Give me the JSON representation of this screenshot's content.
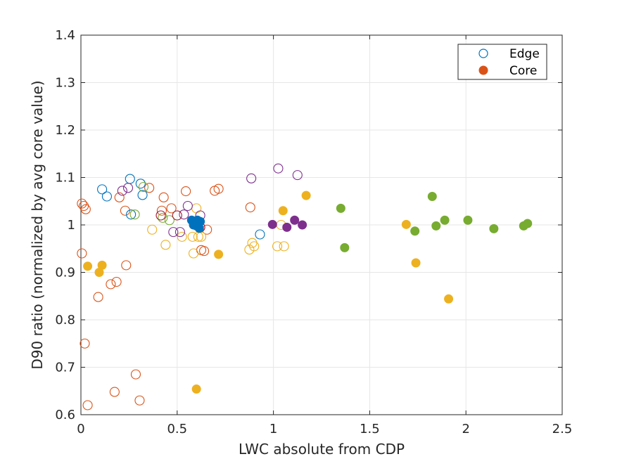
{
  "chart_data": {
    "type": "scatter",
    "title": "",
    "xlabel": "LWC absolute from CDP",
    "ylabel": "D90 ratio (normalized by avg core value)",
    "xlim": [
      0,
      2.5
    ],
    "ylim": [
      0.6,
      1.4
    ],
    "x_ticks": [
      "0",
      "0.5",
      "1",
      "1.5",
      "2",
      "2.5"
    ],
    "x_tick_values": [
      0,
      0.5,
      1,
      1.5,
      2,
      2.5
    ],
    "y_ticks": [
      "0.6",
      "0.7",
      "0.8",
      "0.9",
      "1",
      "1.1",
      "1.2",
      "1.3",
      "1.4"
    ],
    "y_tick_values": [
      0.6,
      0.7,
      0.8,
      0.9,
      1.0,
      1.1,
      1.2,
      1.3,
      1.4
    ],
    "grid": true,
    "legend_placement": "top-right",
    "legend": [
      {
        "label": "Edge",
        "marker": "open-circle",
        "color": "#0072BD"
      },
      {
        "label": "Core",
        "marker": "filled-circle",
        "color": "#D95319"
      }
    ],
    "series": [
      {
        "color": "#D95319",
        "filled": false,
        "points": [
          [
            0.005,
            1.045
          ],
          [
            0.015,
            1.04
          ],
          [
            0.025,
            1.033
          ],
          [
            0.005,
            0.94
          ],
          [
            0.02,
            0.75
          ],
          [
            0.035,
            0.62
          ],
          [
            0.09,
            0.848
          ],
          [
            0.155,
            0.875
          ],
          [
            0.185,
            0.88
          ],
          [
            0.235,
            0.915
          ],
          [
            0.175,
            0.648
          ],
          [
            0.285,
            0.685
          ],
          [
            0.305,
            0.63
          ],
          [
            0.2,
            1.058
          ],
          [
            0.23,
            1.03
          ],
          [
            0.355,
            1.078
          ],
          [
            0.43,
            1.058
          ],
          [
            0.545,
            1.071
          ],
          [
            0.6,
            1.0
          ],
          [
            0.625,
            0.947
          ],
          [
            0.64,
            0.945
          ],
          [
            0.655,
            0.99
          ],
          [
            0.695,
            1.072
          ],
          [
            0.715,
            1.076
          ],
          [
            0.88,
            1.037
          ],
          [
            0.42,
            1.03
          ],
          [
            0.47,
            1.035
          ]
        ]
      },
      {
        "color": "#0072BD",
        "filled": false,
        "points": [
          [
            0.11,
            1.075
          ],
          [
            0.135,
            1.06
          ],
          [
            0.26,
            1.022
          ],
          [
            0.255,
            1.097
          ],
          [
            0.31,
            1.087
          ],
          [
            0.32,
            1.063
          ],
          [
            0.93,
            0.98
          ]
        ]
      },
      {
        "color": "#EDB120",
        "filled": false,
        "points": [
          [
            0.37,
            0.99
          ],
          [
            0.44,
            0.958
          ],
          [
            0.525,
            0.975
          ],
          [
            0.58,
            0.975
          ],
          [
            0.585,
            0.94
          ],
          [
            0.61,
            0.975
          ],
          [
            0.625,
            0.975
          ],
          [
            0.875,
            0.948
          ],
          [
            0.89,
            0.962
          ],
          [
            0.9,
            0.955
          ],
          [
            1.02,
            0.955
          ],
          [
            1.04,
            1.0
          ],
          [
            1.055,
            0.955
          ],
          [
            0.6,
            1.035
          ]
        ]
      },
      {
        "color": "#77AC30",
        "filled": false,
        "points": [
          [
            0.28,
            1.022
          ],
          [
            0.425,
            1.015
          ],
          [
            0.46,
            1.01
          ],
          [
            0.325,
            1.08
          ]
        ]
      },
      {
        "color": "#7E2F8E",
        "filled": false,
        "points": [
          [
            0.215,
            1.072
          ],
          [
            0.245,
            1.078
          ],
          [
            0.48,
            0.985
          ],
          [
            0.515,
            0.985
          ],
          [
            0.535,
            1.022
          ],
          [
            0.555,
            1.04
          ],
          [
            0.885,
            1.098
          ],
          [
            1.025,
            1.119
          ],
          [
            1.125,
            1.105
          ],
          [
            0.62,
            1.02
          ]
        ]
      },
      {
        "color": "#A2142F",
        "filled": false,
        "points": [
          [
            0.415,
            1.02
          ],
          [
            0.5,
            1.02
          ],
          [
            0.62,
            0.995
          ]
        ]
      },
      {
        "color": "#0072BD",
        "filled": true,
        "points": [
          [
            0.575,
            1.01
          ],
          [
            0.585,
            1.0
          ],
          [
            0.595,
            1.005
          ],
          [
            0.6,
            0.998
          ],
          [
            0.605,
            1.01
          ],
          [
            0.61,
            1.002
          ],
          [
            0.615,
            0.993
          ],
          [
            0.62,
            1.007
          ]
        ]
      },
      {
        "color": "#EDB120",
        "filled": true,
        "points": [
          [
            0.035,
            0.913
          ],
          [
            0.095,
            0.9
          ],
          [
            0.11,
            0.915
          ],
          [
            0.6,
            0.654
          ],
          [
            0.715,
            0.938
          ],
          [
            1.05,
            1.03
          ],
          [
            1.17,
            1.062
          ],
          [
            1.69,
            1.001
          ],
          [
            1.74,
            0.92
          ],
          [
            1.91,
            0.844
          ]
        ]
      },
      {
        "color": "#7E2F8E",
        "filled": true,
        "points": [
          [
            0.995,
            1.001
          ],
          [
            1.07,
            0.995
          ],
          [
            1.11,
            1.01
          ],
          [
            1.15,
            1.0
          ]
        ]
      },
      {
        "color": "#77AC30",
        "filled": true,
        "points": [
          [
            1.35,
            1.035
          ],
          [
            1.37,
            0.952
          ],
          [
            1.735,
            0.987
          ],
          [
            1.825,
            1.06
          ],
          [
            1.845,
            0.998
          ],
          [
            1.89,
            1.01
          ],
          [
            2.01,
            1.01
          ],
          [
            2.145,
            0.992
          ],
          [
            2.3,
            0.998
          ],
          [
            2.32,
            1.003
          ]
        ]
      }
    ]
  }
}
